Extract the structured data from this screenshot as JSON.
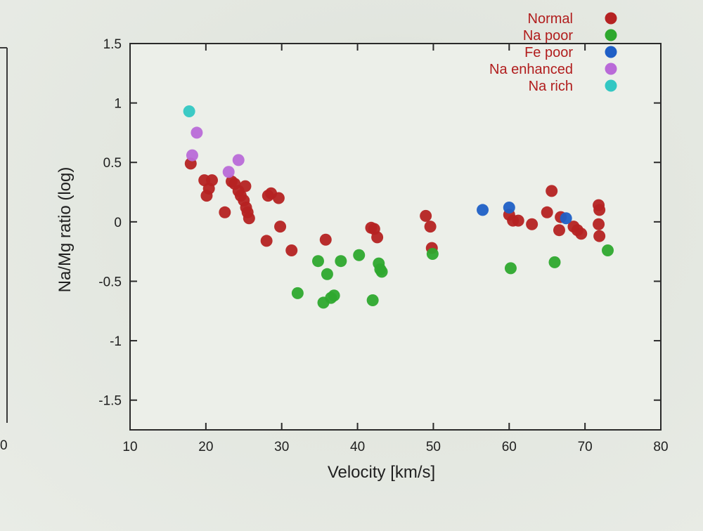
{
  "chart_data": {
    "type": "scatter",
    "title": "",
    "xlabel": "Velocity [km/s]",
    "ylabel": "Na/Mg ratio (log)",
    "xlim": [
      10,
      80
    ],
    "ylim": [
      -1.75,
      1.5
    ],
    "xticks": [
      "10",
      "20",
      "30",
      "40",
      "50",
      "60",
      "70",
      "80"
    ],
    "yticks": [
      "1.5",
      "1",
      "0.5",
      "0",
      "-0.5",
      "-1",
      "-1.5"
    ],
    "legend_position": "top-right",
    "grid": false,
    "series": [
      {
        "name": "Normal",
        "color": "#b52222",
        "points": [
          [
            18,
            0.49
          ],
          [
            19.8,
            0.35
          ],
          [
            20.1,
            0.22
          ],
          [
            20.4,
            0.28
          ],
          [
            20.8,
            0.35
          ],
          [
            22.5,
            0.08
          ],
          [
            23.4,
            0.34
          ],
          [
            23.8,
            0.32
          ],
          [
            24.3,
            0.26
          ],
          [
            24.6,
            0.22
          ],
          [
            25.0,
            0.18
          ],
          [
            25.2,
            0.3
          ],
          [
            25.3,
            0.12
          ],
          [
            25.5,
            0.08
          ],
          [
            25.7,
            0.03
          ],
          [
            28.2,
            0.22
          ],
          [
            28.6,
            0.24
          ],
          [
            29.6,
            0.2
          ],
          [
            29.8,
            -0.04
          ],
          [
            28.0,
            -0.16
          ],
          [
            31.3,
            -0.24
          ],
          [
            35.8,
            -0.15
          ],
          [
            41.8,
            -0.05
          ],
          [
            42.2,
            -0.06
          ],
          [
            42.6,
            -0.13
          ],
          [
            49.0,
            0.05
          ],
          [
            49.6,
            -0.04
          ],
          [
            49.8,
            -0.22
          ],
          [
            60.0,
            0.06
          ],
          [
            60.5,
            0.01
          ],
          [
            61.2,
            0.01
          ],
          [
            63.0,
            -0.02
          ],
          [
            65.0,
            0.08
          ],
          [
            65.6,
            0.26
          ],
          [
            66.6,
            -0.07
          ],
          [
            66.8,
            0.04
          ],
          [
            68.5,
            -0.04
          ],
          [
            69.0,
            -0.07
          ],
          [
            69.5,
            -0.1
          ],
          [
            71.8,
            0.14
          ],
          [
            71.9,
            0.1
          ],
          [
            71.8,
            -0.02
          ],
          [
            71.9,
            -0.12
          ]
        ]
      },
      {
        "name": "Na poor",
        "color": "#2ea82e",
        "points": [
          [
            32.1,
            -0.6
          ],
          [
            34.8,
            -0.33
          ],
          [
            35.5,
            -0.68
          ],
          [
            36.0,
            -0.44
          ],
          [
            36.5,
            -0.64
          ],
          [
            36.9,
            -0.62
          ],
          [
            37.8,
            -0.33
          ],
          [
            40.2,
            -0.28
          ],
          [
            42.0,
            -0.66
          ],
          [
            42.8,
            -0.35
          ],
          [
            43.0,
            -0.4
          ],
          [
            43.2,
            -0.42
          ],
          [
            49.9,
            -0.27
          ],
          [
            60.2,
            -0.39
          ],
          [
            66.0,
            -0.34
          ],
          [
            73.0,
            -0.24
          ]
        ]
      },
      {
        "name": "Fe poor",
        "color": "#1f5fc6",
        "points": [
          [
            56.5,
            0.1
          ],
          [
            60.0,
            0.12
          ],
          [
            67.5,
            0.03
          ]
        ]
      },
      {
        "name": "Na enhanced",
        "color": "#b96ad8",
        "points": [
          [
            18.2,
            0.56
          ],
          [
            18.8,
            0.75
          ],
          [
            23.0,
            0.42
          ],
          [
            24.3,
            0.52
          ]
        ]
      },
      {
        "name": "Na rich",
        "color": "#33c7c3",
        "points": [
          [
            17.8,
            0.93
          ]
        ]
      }
    ]
  }
}
